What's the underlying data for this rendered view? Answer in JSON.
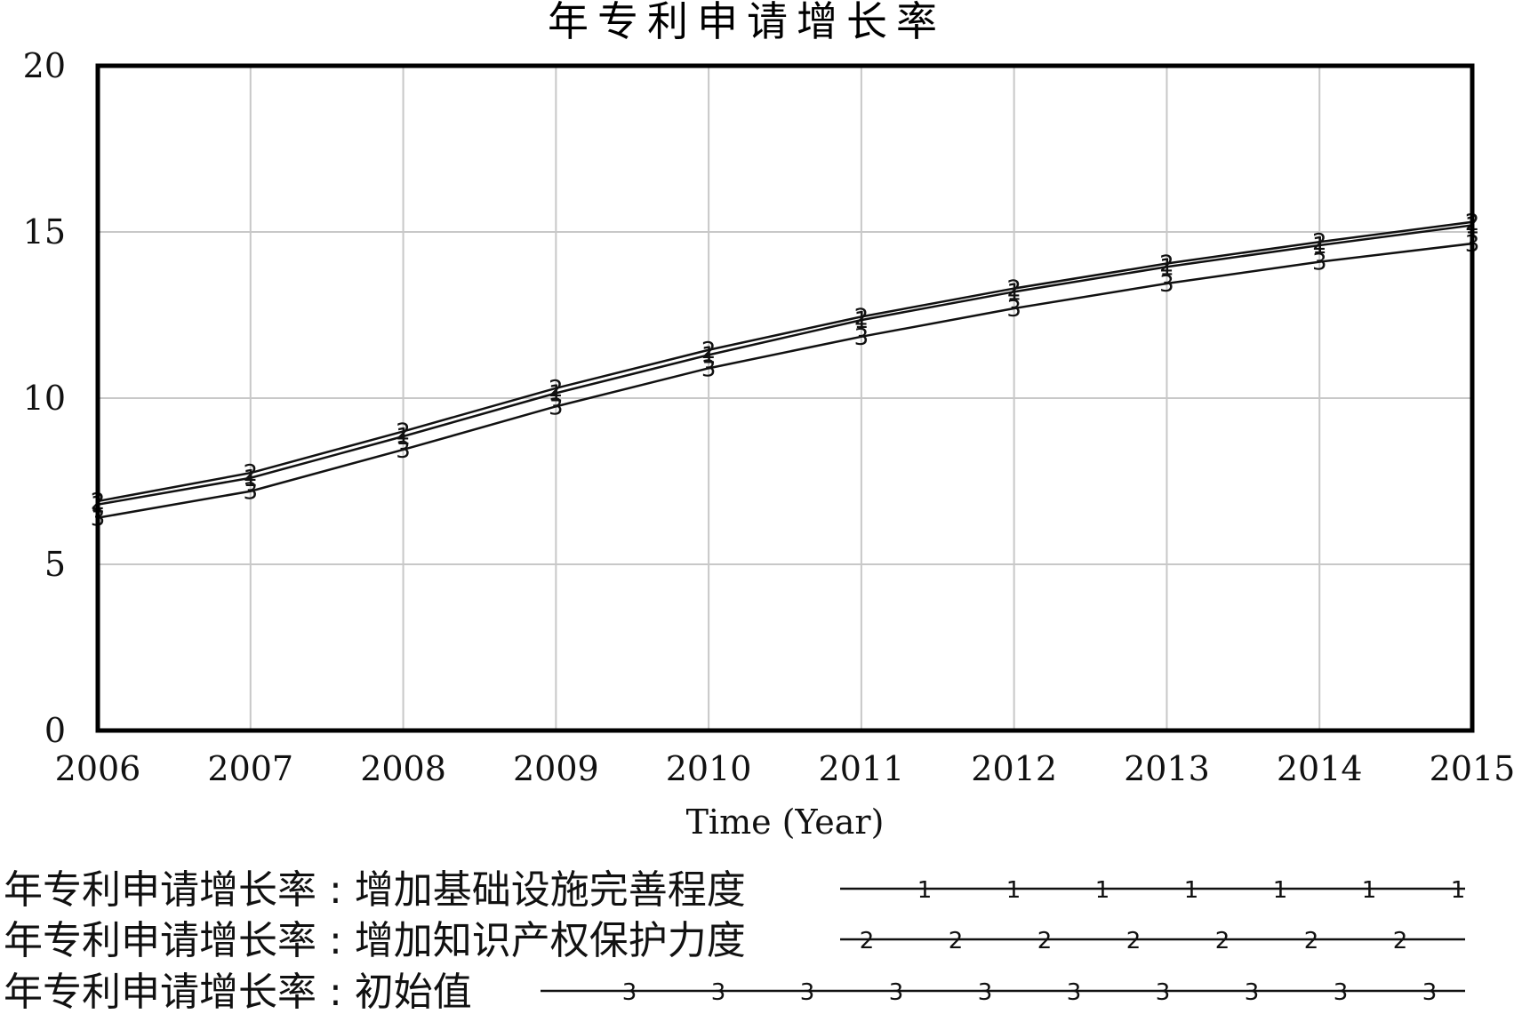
{
  "chart_data": {
    "type": "line",
    "title": "年专利申请增长率",
    "xlabel": "Time (Year)",
    "ylabel": "",
    "x": [
      2006,
      2007,
      2008,
      2009,
      2010,
      2011,
      2012,
      2013,
      2014,
      2015
    ],
    "xlim": [
      2006,
      2015
    ],
    "ylim": [
      0,
      20
    ],
    "x_ticks": [
      "2006",
      "2007",
      "2008",
      "2009",
      "2010",
      "2011",
      "2012",
      "2013",
      "2014",
      "2015"
    ],
    "y_ticks": [
      "0",
      "5",
      "10",
      "15",
      "20"
    ],
    "grid": true,
    "legend_position": "bottom",
    "series": [
      {
        "name": "年专利申请增长率 : 增加基础设施完善程度",
        "marker": "1",
        "values": [
          6.8,
          7.6,
          8.85,
          10.15,
          11.3,
          12.35,
          13.2,
          13.95,
          14.6,
          15.2
        ]
      },
      {
        "name": "年专利申请增长率 : 增加知识产权保护力度",
        "marker": "2",
        "values": [
          6.9,
          7.75,
          9.0,
          10.3,
          11.45,
          12.45,
          13.3,
          14.05,
          14.7,
          15.3
        ]
      },
      {
        "name": "年专利申请增长率 : 初始值",
        "marker": "3",
        "values": [
          6.4,
          7.2,
          8.45,
          9.75,
          10.9,
          11.85,
          12.7,
          13.45,
          14.1,
          14.65
        ]
      }
    ]
  },
  "colors": {
    "line": "#111111",
    "grid": "#c8c8c8",
    "frame": "#000000",
    "background": "#ffffff"
  }
}
